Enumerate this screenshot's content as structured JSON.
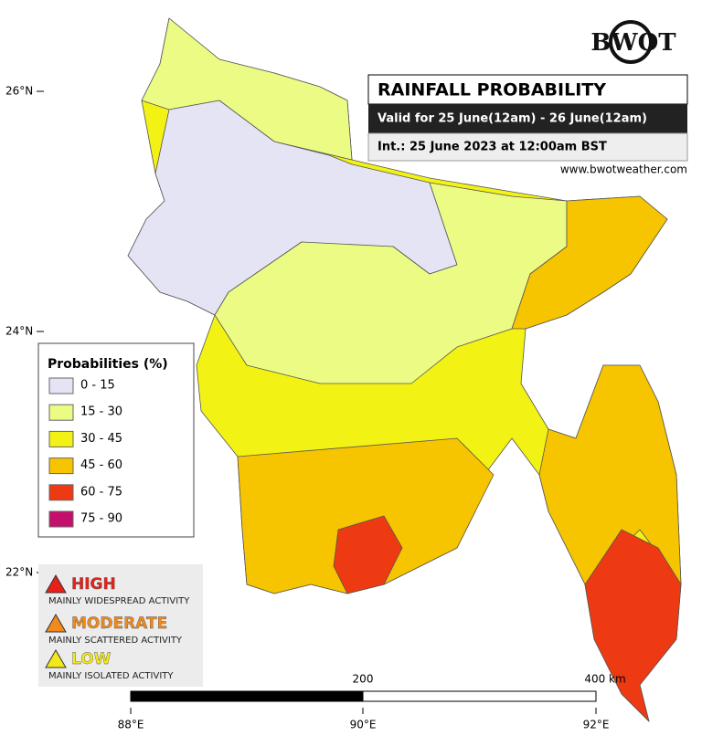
{
  "header": {
    "logo": "BWOT",
    "title": "RAINFALL PROBABILITY",
    "valid": "Valid for 25 June(12am) - 26 June(12am)",
    "issued": "Int.: 25 June 2023 at 12:00am BST",
    "website": "www.bwotweather.com"
  },
  "legend": {
    "title": "Probabilities (%)",
    "items": [
      {
        "label": "0 - 15",
        "color": "#e4e4f4"
      },
      {
        "label": "15 - 30",
        "color": "#ecfb84"
      },
      {
        "label": "30 - 45",
        "color": "#f2f215"
      },
      {
        "label": "45 - 60",
        "color": "#f7c400"
      },
      {
        "label": "60 - 75",
        "color": "#ee3a12"
      },
      {
        "label": "75 - 90",
        "color": "#c4106c"
      }
    ]
  },
  "risk": [
    {
      "level": "HIGH",
      "description": "MAINLY WIDESPREAD ACTIVITY",
      "color": "#e8201a"
    },
    {
      "level": "MODERATE",
      "description": "MAINLY SCATTERED ACTIVITY",
      "color": "#f08a1c"
    },
    {
      "level": "LOW",
      "description": "MAINLY ISOLATED ACTIVITY",
      "color": "#f2e81a"
    }
  ],
  "axes": {
    "latitudes": [
      "26°N",
      "24°N",
      "22°N"
    ],
    "longitudes": [
      "88°E",
      "90°E",
      "92°E"
    ]
  },
  "scale": {
    "mid": "200",
    "end": "400 km"
  }
}
